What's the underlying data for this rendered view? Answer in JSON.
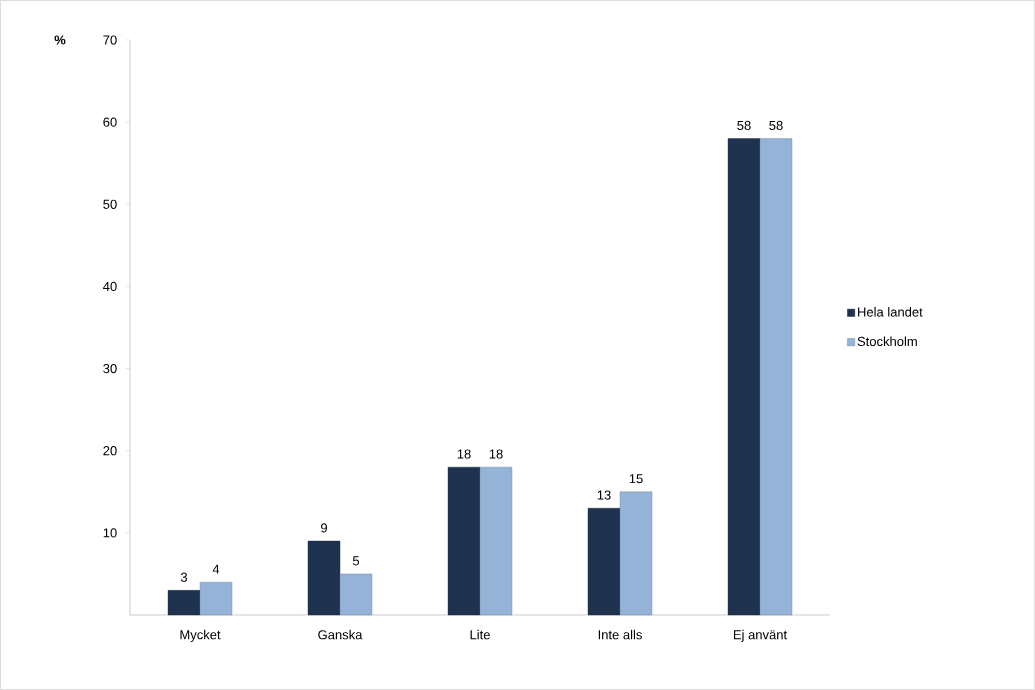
{
  "chart_data": {
    "type": "bar",
    "ylabel": "%",
    "categories": [
      "Mycket",
      "Ganska",
      "Lite",
      "Inte alls",
      "Ej använt"
    ],
    "series": [
      {
        "name": "Hela landet",
        "color": "#1f3350",
        "values": [
          3,
          9,
          18,
          13,
          58
        ]
      },
      {
        "name": "Stockholm",
        "color": "#95b3d7",
        "values": [
          4,
          5,
          18,
          15,
          58
        ]
      }
    ],
    "ylim": [
      0,
      70
    ],
    "yticks": [
      10,
      20,
      30,
      40,
      50,
      60,
      70
    ],
    "data_labels": true,
    "grid": false,
    "legend": "right"
  }
}
